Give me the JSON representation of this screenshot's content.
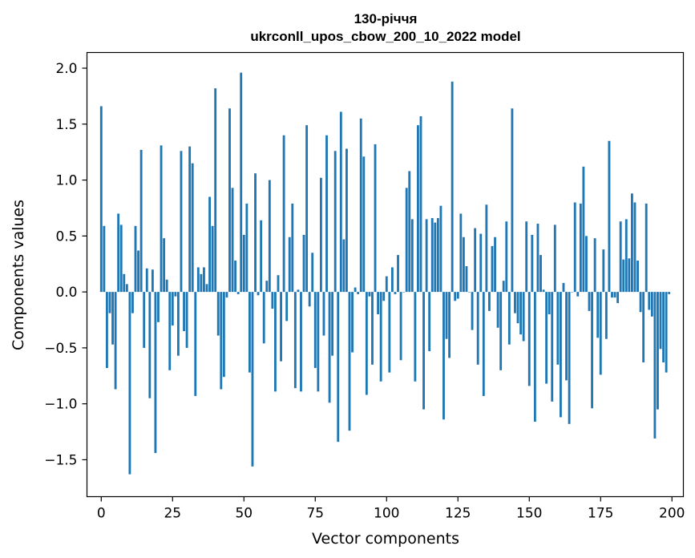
{
  "chart_data": {
    "type": "bar",
    "title": "130-річчя",
    "subtitle": "ukrconll_upos_cbow_200_10_2022 model",
    "xlabel": "Vector components",
    "ylabel": "Components values",
    "xlim": [
      -5,
      204
    ],
    "ylim": [
      -1.83,
      2.14
    ],
    "xticks": [
      0,
      25,
      50,
      75,
      100,
      125,
      150,
      175,
      200
    ],
    "xtick_labels": [
      "0",
      "25",
      "50",
      "75",
      "100",
      "125",
      "150",
      "175",
      "200"
    ],
    "yticks": [
      -1.5,
      -1.0,
      -0.5,
      0.0,
      0.5,
      1.0,
      1.5,
      2.0
    ],
    "ytick_labels": [
      "−1.5",
      "−1.0",
      "−0.5",
      "0.0",
      "0.5",
      "1.0",
      "1.5",
      "2.0"
    ],
    "grid": false,
    "bar_color": "#1f77b4",
    "values": [
      1.66,
      0.59,
      -0.68,
      -0.19,
      -0.47,
      -0.87,
      0.7,
      0.6,
      0.16,
      0.07,
      -1.63,
      -0.19,
      0.59,
      0.37,
      1.27,
      -0.5,
      0.21,
      -0.95,
      0.2,
      -1.44,
      -0.27,
      1.31,
      0.48,
      0.11,
      -0.7,
      -0.3,
      -0.04,
      -0.57,
      1.26,
      -0.35,
      -0.5,
      1.3,
      1.15,
      -0.93,
      0.22,
      0.16,
      0.22,
      0.07,
      0.85,
      0.59,
      1.82,
      -0.39,
      -0.87,
      -0.76,
      -0.05,
      1.64,
      0.93,
      0.28,
      -0.02,
      1.96,
      0.51,
      0.79,
      -0.72,
      -1.56,
      1.06,
      -0.03,
      0.64,
      -0.46,
      0.1,
      1.0,
      -0.15,
      -0.89,
      0.15,
      -0.62,
      1.4,
      -0.26,
      0.49,
      0.79,
      -0.86,
      0.02,
      -0.89,
      0.51,
      1.49,
      -0.13,
      0.35,
      -0.68,
      -0.89,
      1.02,
      -0.39,
      1.4,
      -0.99,
      -0.57,
      1.26,
      -1.34,
      1.61,
      0.47,
      1.28,
      -1.24,
      -0.54,
      0.04,
      -0.02,
      1.55,
      1.21,
      -0.92,
      -0.04,
      -0.65,
      1.32,
      -0.2,
      -0.8,
      -0.08,
      0.14,
      -0.72,
      0.22,
      -0.02,
      0.33,
      -0.61,
      0.0,
      0.93,
      1.08,
      0.65,
      -0.8,
      1.49,
      1.57,
      -1.05,
      0.65,
      -0.53,
      0.66,
      0.62,
      0.66,
      0.77,
      -1.14,
      -0.42,
      -0.59,
      1.88,
      -0.08,
      -0.06,
      0.7,
      0.49,
      0.23,
      0.0,
      -0.34,
      0.57,
      -0.65,
      0.52,
      -0.93,
      0.78,
      -0.17,
      0.41,
      0.49,
      -0.32,
      -0.7,
      0.1,
      0.63,
      -0.47,
      1.64,
      -0.19,
      -0.28,
      -0.38,
      -0.44,
      0.63,
      -0.84,
      0.51,
      -1.16,
      0.61,
      0.33,
      0.02,
      -0.82,
      -0.2,
      -0.98,
      0.6,
      -0.65,
      -1.12,
      0.08,
      -0.79,
      -1.18,
      0.0,
      0.8,
      -0.04,
      0.79,
      1.12,
      0.5,
      -0.17,
      -1.04,
      0.48,
      -0.41,
      -0.74,
      0.38,
      -0.42,
      1.35,
      -0.05,
      -0.05,
      -0.1,
      0.63,
      0.29,
      0.65,
      0.3,
      0.88,
      0.8,
      0.28,
      -0.18,
      -0.63,
      0.79,
      -0.16,
      -0.22,
      -1.31,
      -1.05,
      -0.51,
      -0.63,
      -0.72,
      -0.02
    ]
  }
}
